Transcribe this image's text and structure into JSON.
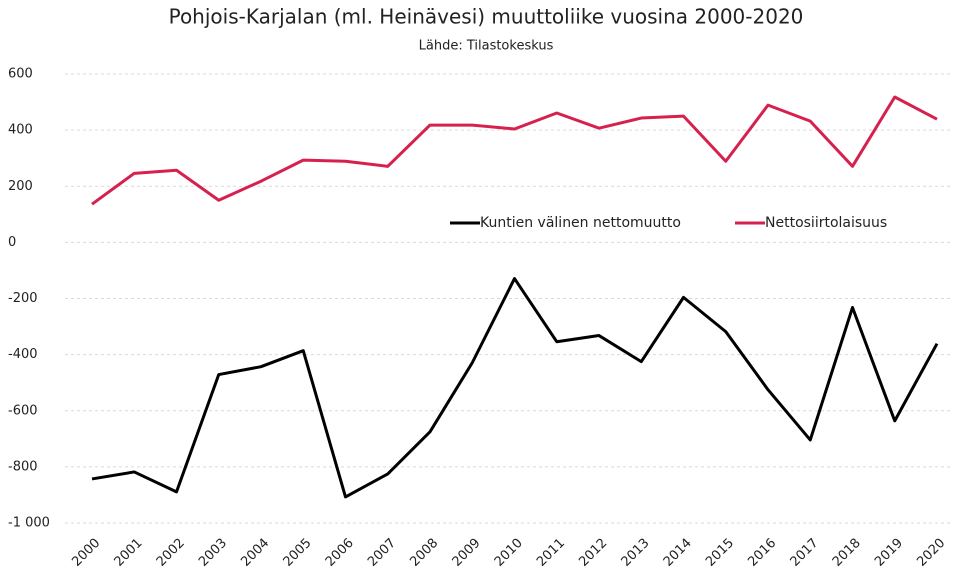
{
  "chart_data": {
    "type": "line",
    "title": "Pohjois-Karjalan (ml. Heinävesi) muuttoliike vuosina 2000-2020",
    "subtitle": "Lähde: Tilastokeskus",
    "categories": [
      "2000",
      "2001",
      "2002",
      "2003",
      "2004",
      "2005",
      "2006",
      "2007",
      "2008",
      "2009",
      "2010",
      "2011",
      "2012",
      "2013",
      "2014",
      "2015",
      "2016",
      "2017",
      "2018",
      "2019",
      "2020"
    ],
    "series": [
      {
        "name": "Kuntien välinen nettomuutto",
        "color": "#000000",
        "values": [
          -843,
          -818,
          -889,
          -471,
          -443,
          -386,
          -907,
          -825,
          -675,
          -429,
          -129,
          -354,
          -332,
          -425,
          -196,
          -318,
          -525,
          -704,
          -232,
          -636,
          -361
        ]
      },
      {
        "name": "Nettosiirtolaisuus",
        "color": "#d6204d",
        "values": [
          136,
          246,
          257,
          150,
          218,
          293,
          289,
          271,
          418,
          418,
          404,
          461,
          407,
          443,
          450,
          289,
          489,
          432,
          271,
          518,
          439
        ]
      }
    ],
    "ylim": [
      -1000,
      600
    ],
    "yticks": [
      {
        "value": -1000,
        "label": "-1 000"
      },
      -800,
      -600,
      -400,
      -200,
      0,
      200,
      400,
      600
    ],
    "grid": true
  }
}
